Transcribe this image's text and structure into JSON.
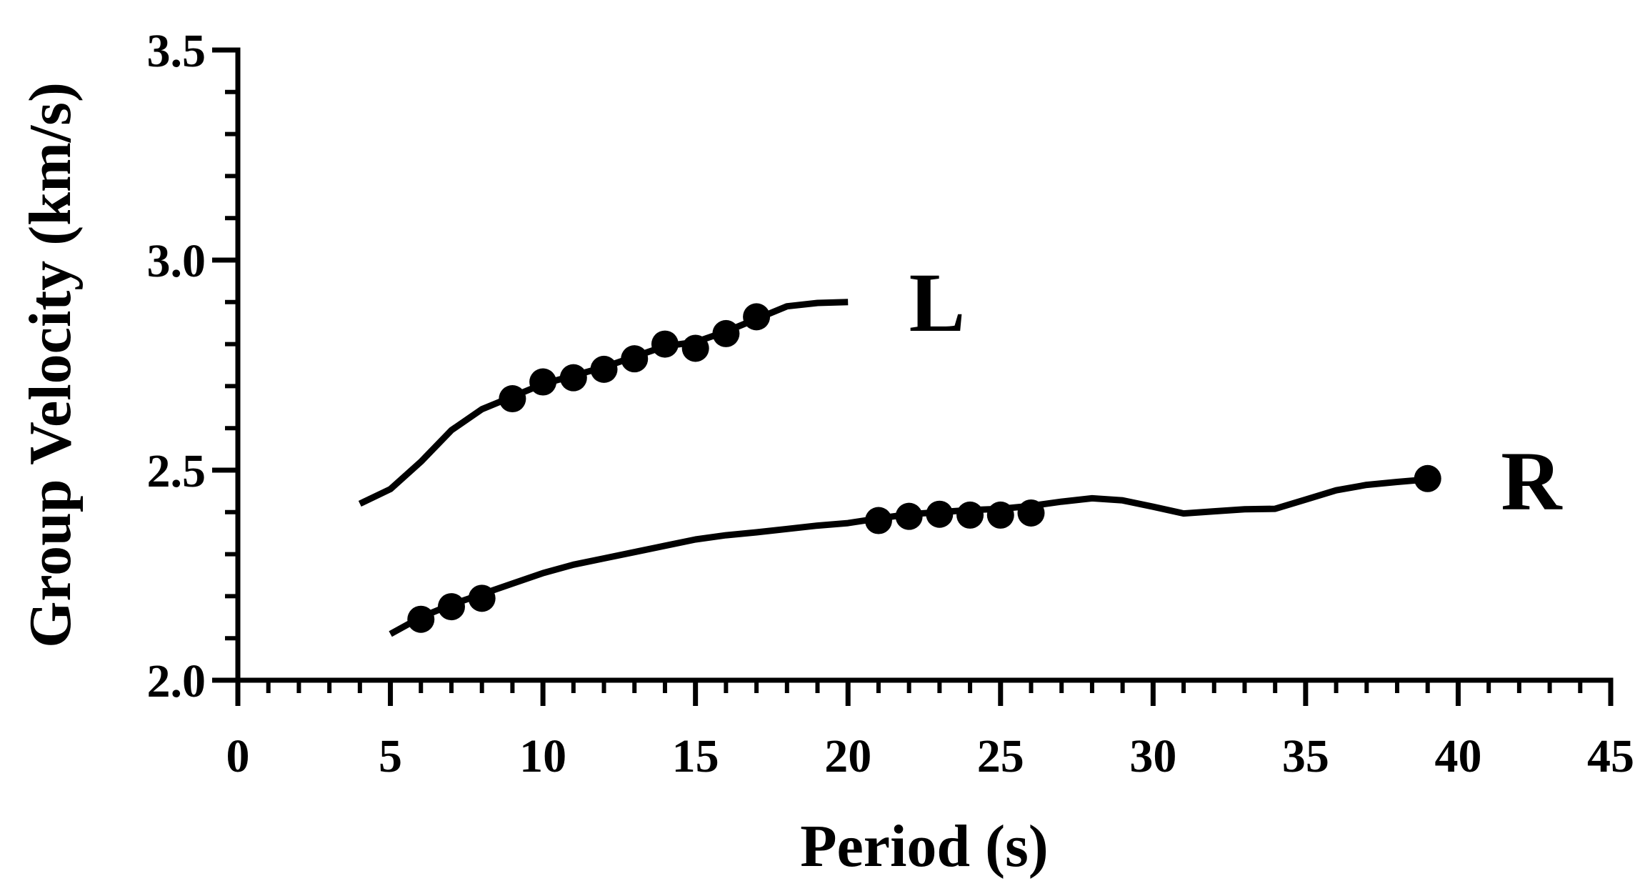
{
  "chart_data": {
    "type": "line",
    "xlabel": "Period (s)",
    "ylabel": "Group Velocity (km/s)",
    "xlim": [
      0,
      45
    ],
    "ylim": [
      2.0,
      3.5
    ],
    "x_ticks": [
      {
        "value": 0,
        "label": "0"
      },
      {
        "value": 5,
        "label": "5"
      },
      {
        "value": 10,
        "label": "10"
      },
      {
        "value": 15,
        "label": "15"
      },
      {
        "value": 20,
        "label": "20"
      },
      {
        "value": 25,
        "label": "25"
      },
      {
        "value": 30,
        "label": "30"
      },
      {
        "value": 35,
        "label": "35"
      },
      {
        "value": 40,
        "label": "40"
      },
      {
        "value": 45,
        "label": "45"
      }
    ],
    "y_ticks": [
      {
        "value": 2.0,
        "label": "2.0"
      },
      {
        "value": 2.5,
        "label": "2.5"
      },
      {
        "value": 3.0,
        "label": "3.0"
      },
      {
        "value": 3.5,
        "label": "3.5"
      }
    ],
    "minor_x_step": 1,
    "minor_y_step": 0.1,
    "grid": false,
    "color": "#000000",
    "series": [
      {
        "name": "L",
        "line": {
          "x": [
            4,
            5,
            6,
            7,
            8,
            9,
            10,
            11,
            12,
            13,
            14,
            15,
            16,
            17,
            18,
            19,
            20
          ],
          "y": [
            2.42,
            2.455,
            2.52,
            2.595,
            2.645,
            2.675,
            2.705,
            2.725,
            2.745,
            2.77,
            2.795,
            2.805,
            2.83,
            2.86,
            2.89,
            2.898,
            2.9
          ]
        },
        "points": {
          "x": [
            9,
            10,
            11,
            12,
            13,
            14,
            15,
            16,
            17
          ],
          "y": [
            2.67,
            2.71,
            2.72,
            2.74,
            2.765,
            2.8,
            2.79,
            2.825,
            2.865
          ]
        },
        "label_at": {
          "x": 22,
          "y": 2.9
        }
      },
      {
        "name": "R",
        "line": {
          "x": [
            5,
            6,
            7,
            8,
            9,
            10,
            11,
            12,
            13,
            14,
            15,
            16,
            17,
            18,
            19,
            20,
            21,
            22,
            23,
            24,
            25,
            26,
            27,
            28,
            29,
            30,
            31,
            32,
            33,
            34,
            35,
            36,
            37,
            38,
            39
          ],
          "y": [
            2.11,
            2.15,
            2.18,
            2.205,
            2.23,
            2.255,
            2.275,
            2.29,
            2.305,
            2.32,
            2.335,
            2.345,
            2.352,
            2.36,
            2.368,
            2.374,
            2.385,
            2.395,
            2.4,
            2.405,
            2.408,
            2.415,
            2.425,
            2.433,
            2.428,
            2.413,
            2.397,
            2.402,
            2.407,
            2.408,
            2.43,
            2.452,
            2.465,
            2.472,
            2.478
          ]
        },
        "points": {
          "x": [
            6,
            7,
            8,
            21,
            22,
            23,
            24,
            25,
            26,
            39
          ],
          "y": [
            2.145,
            2.175,
            2.195,
            2.38,
            2.39,
            2.395,
            2.393,
            2.393,
            2.398,
            2.48
          ]
        },
        "label_at": {
          "x": 41.4,
          "y": 2.475
        }
      }
    ]
  }
}
